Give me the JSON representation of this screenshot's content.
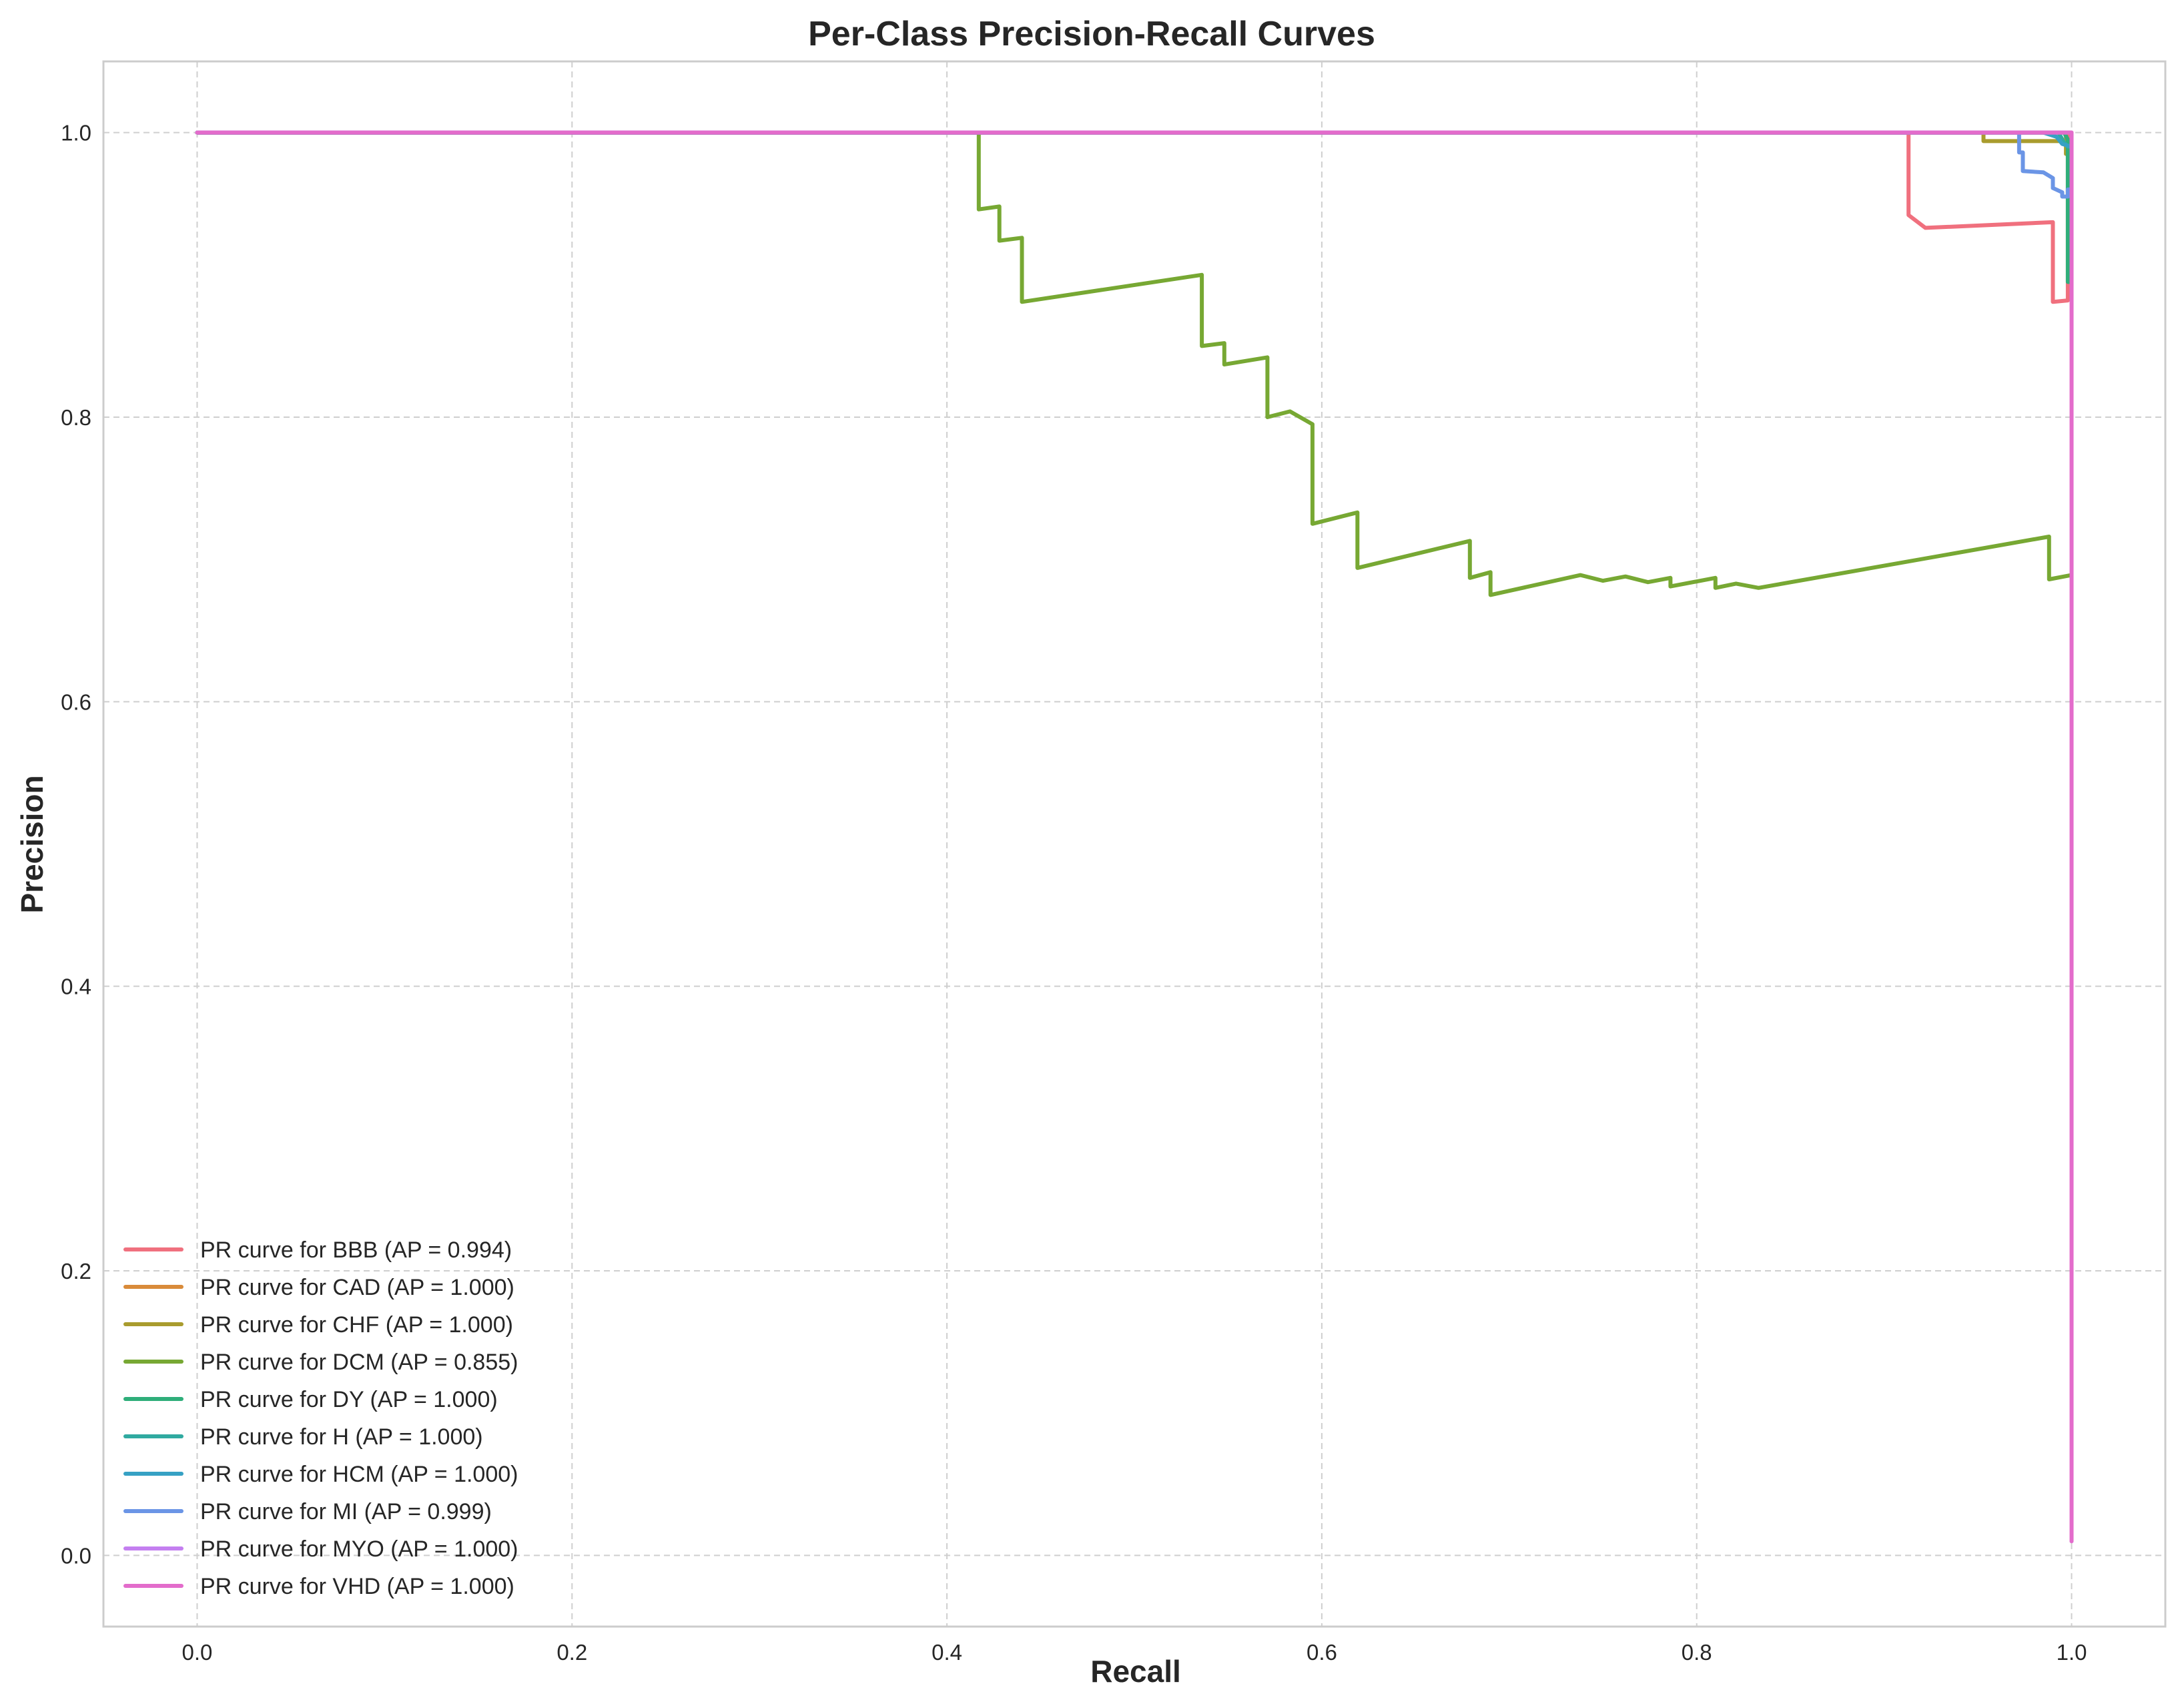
{
  "chart_data": {
    "type": "line",
    "title": "Per-Class Precision-Recall Curves",
    "xlabel": "Recall",
    "ylabel": "Precision",
    "xlim": [
      -0.05,
      1.05
    ],
    "ylim": [
      -0.05,
      1.05
    ],
    "xticks": [
      "0.0",
      "0.2",
      "0.4",
      "0.6",
      "0.8",
      "1.0"
    ],
    "xtick_values": [
      0.0,
      0.2,
      0.4,
      0.6,
      0.8,
      1.0
    ],
    "yticks": [
      "0.0",
      "0.2",
      "0.4",
      "0.6",
      "0.8",
      "1.0"
    ],
    "ytick_values": [
      0.0,
      0.2,
      0.4,
      0.6,
      0.8,
      1.0
    ],
    "grid": true,
    "legend_position": "lower-left",
    "series": [
      {
        "name": "PR curve for BBB (AP = 0.994)",
        "color": "#f0707e",
        "x": [
          0,
          0.913,
          0.913,
          0.922,
          0.99,
          0.99,
          0.998,
          0.998,
          1.0
        ],
        "y": [
          1.0,
          1.0,
          0.942,
          0.933,
          0.937,
          0.881,
          0.882,
          1.0,
          1.0
        ]
      },
      {
        "name": "PR curve for CAD (AP = 1.000)",
        "color": "#d98b3a",
        "x": [
          0,
          0.997,
          0.997,
          1.0
        ],
        "y": [
          1.0,
          1.0,
          0.995,
          0.995
        ]
      },
      {
        "name": "PR curve for CHF (AP = 1.000)",
        "color": "#a99c2e",
        "x": [
          0,
          0.953,
          0.953,
          0.997,
          0.997,
          1.0
        ],
        "y": [
          1.0,
          1.0,
          0.994,
          0.994,
          0.985,
          0.985
        ]
      },
      {
        "name": "PR curve for DCM (AP = 0.855)",
        "color": "#77a833",
        "x": [
          0,
          0.417,
          0.417,
          0.428,
          0.428,
          0.44,
          0.44,
          0.536,
          0.536,
          0.548,
          0.548,
          0.571,
          0.571,
          0.583,
          0.595,
          0.595,
          0.619,
          0.619,
          0.679,
          0.679,
          0.69,
          0.69,
          0.738,
          0.75,
          0.762,
          0.774,
          0.786,
          0.786,
          0.81,
          0.81,
          0.821,
          0.833,
          0.988,
          0.988,
          1.0
        ],
        "y": [
          1.0,
          1.0,
          0.946,
          0.948,
          0.924,
          0.926,
          0.881,
          0.9,
          0.85,
          0.852,
          0.837,
          0.842,
          0.8,
          0.804,
          0.795,
          0.725,
          0.733,
          0.694,
          0.713,
          0.687,
          0.691,
          0.675,
          0.689,
          0.685,
          0.688,
          0.684,
          0.687,
          0.681,
          0.687,
          0.68,
          0.683,
          0.68,
          0.716,
          0.686,
          0.689
        ]
      },
      {
        "name": "PR curve for DY (AP = 1.000)",
        "color": "#2fae7a",
        "x": [
          0,
          0.996,
          0.998,
          0.998,
          1.0
        ],
        "y": [
          1.0,
          1.0,
          0.995,
          0.895,
          0.895
        ]
      },
      {
        "name": "PR curve for H (AP = 1.000)",
        "color": "#30aaa0",
        "x": [
          0,
          0.993,
          0.996,
          0.998,
          1.0
        ],
        "y": [
          1.0,
          1.0,
          0.993,
          0.99,
          0.99
        ]
      },
      {
        "name": "PR curve for HCM (AP = 1.000)",
        "color": "#36a1c4",
        "x": [
          0,
          0.985,
          0.992,
          0.995,
          1.0
        ],
        "y": [
          1.0,
          1.0,
          0.997,
          0.992,
          0.99
        ]
      },
      {
        "name": "PR curve for MI (AP = 0.999)",
        "color": "#6b95e6",
        "x": [
          0,
          0.972,
          0.972,
          0.974,
          0.974,
          0.985,
          0.99,
          0.99,
          0.995,
          0.995,
          0.998,
          0.998,
          1.0,
          1.0
        ],
        "y": [
          1.0,
          1.0,
          0.986,
          0.986,
          0.973,
          0.972,
          0.968,
          0.961,
          0.958,
          0.955,
          0.955,
          0.96,
          0.96,
          0.735
        ]
      },
      {
        "name": "PR curve for MYO (AP = 1.000)",
        "color": "#c47ff0",
        "x": [
          0,
          0.999,
          1.0,
          1.0
        ],
        "y": [
          1.0,
          1.0,
          1.0,
          0.01
        ]
      },
      {
        "name": "PR curve for VHD (AP = 1.000)",
        "color": "#e36ccb",
        "x": [
          0,
          1.0,
          1.0
        ],
        "y": [
          1.0,
          1.0,
          0.01
        ]
      }
    ]
  }
}
